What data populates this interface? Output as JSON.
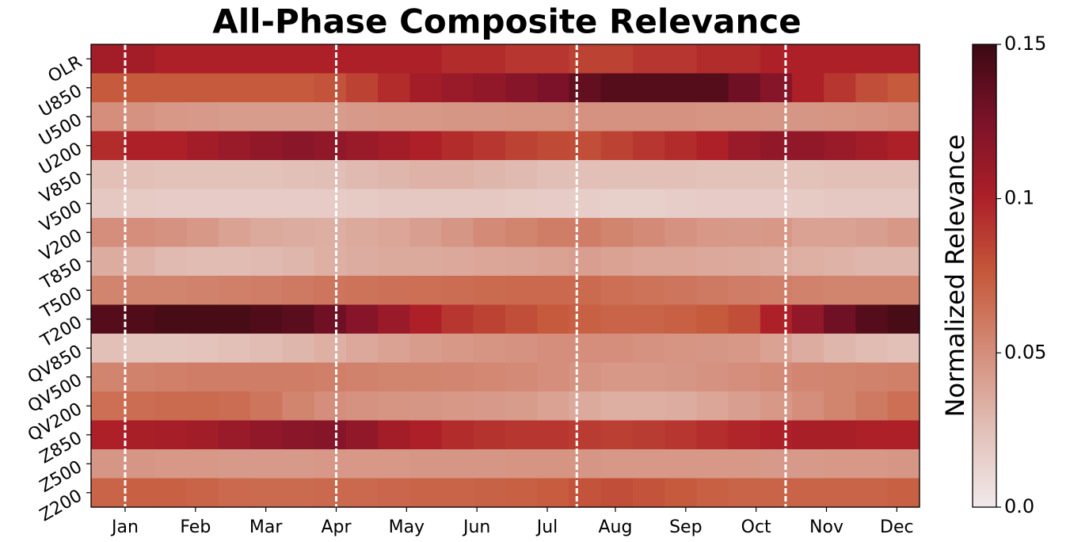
{
  "chart_data": {
    "type": "heatmap",
    "title": "All-Phase Composite Relevance",
    "colorbar_label": "Normalized Relevance",
    "rows": [
      "OLR",
      "U850",
      "U500",
      "U200",
      "V850",
      "V500",
      "V200",
      "T850",
      "T500",
      "T200",
      "QV850",
      "QV500",
      "QV200",
      "Z850",
      "Z500",
      "Z200"
    ],
    "xlim": [
      0,
      365
    ],
    "xticks": [
      {
        "value": 15,
        "label": "Jan"
      },
      {
        "value": 46,
        "label": "Feb"
      },
      {
        "value": 77,
        "label": "Mar"
      },
      {
        "value": 108,
        "label": "Apr"
      },
      {
        "value": 139,
        "label": "May"
      },
      {
        "value": 170,
        "label": "Jun"
      },
      {
        "value": 201,
        "label": "Jul"
      },
      {
        "value": 231,
        "label": "Aug"
      },
      {
        "value": 262,
        "label": "Sep"
      },
      {
        "value": 293,
        "label": "Oct"
      },
      {
        "value": 324,
        "label": "Nov"
      },
      {
        "value": 355,
        "label": "Dec"
      }
    ],
    "vlines": [
      15,
      108,
      214,
      306
    ],
    "vlim": [
      0,
      0.15
    ],
    "cticks": [
      {
        "value": 0,
        "label": "0.0"
      },
      0.05,
      0.1,
      0.15
    ],
    "colormap": [
      "#f1e9ea",
      "#e2c0b8",
      "#d48e7b",
      "#c65a3c",
      "#ad2028",
      "#7c1229",
      "#3b0a12"
    ],
    "values": [
      [
        0.105,
        0.105,
        0.1,
        0.1,
        0.1,
        0.1,
        0.1,
        0.1,
        0.1,
        0.1,
        0.1,
        0.095,
        0.095,
        0.09,
        0.09,
        0.085,
        0.085,
        0.09,
        0.09,
        0.095,
        0.095,
        0.1,
        0.1,
        0.1,
        0.1,
        0.1
      ],
      [
        0.075,
        0.075,
        0.075,
        0.075,
        0.075,
        0.075,
        0.075,
        0.078,
        0.085,
        0.095,
        0.105,
        0.11,
        0.115,
        0.12,
        0.125,
        0.135,
        0.14,
        0.14,
        0.14,
        0.14,
        0.13,
        0.12,
        0.1,
        0.09,
        0.08,
        0.075
      ],
      [
        0.05,
        0.048,
        0.045,
        0.044,
        0.043,
        0.043,
        0.043,
        0.043,
        0.044,
        0.045,
        0.045,
        0.046,
        0.046,
        0.047,
        0.047,
        0.048,
        0.048,
        0.048,
        0.048,
        0.047,
        0.047,
        0.046,
        0.046,
        0.047,
        0.048,
        0.05
      ],
      [
        0.095,
        0.1,
        0.1,
        0.105,
        0.11,
        0.115,
        0.118,
        0.115,
        0.11,
        0.105,
        0.1,
        0.095,
        0.09,
        0.085,
        0.082,
        0.08,
        0.085,
        0.09,
        0.095,
        0.1,
        0.11,
        0.115,
        0.115,
        0.11,
        0.105,
        0.1
      ],
      [
        0.025,
        0.025,
        0.024,
        0.024,
        0.024,
        0.024,
        0.025,
        0.026,
        0.028,
        0.03,
        0.032,
        0.032,
        0.03,
        0.028,
        0.026,
        0.025,
        0.025,
        0.025,
        0.025,
        0.024,
        0.024,
        0.024,
        0.024,
        0.025,
        0.025,
        0.025
      ],
      [
        0.02,
        0.019,
        0.018,
        0.018,
        0.018,
        0.018,
        0.018,
        0.018,
        0.019,
        0.02,
        0.02,
        0.02,
        0.02,
        0.019,
        0.018,
        0.017,
        0.016,
        0.016,
        0.017,
        0.018,
        0.018,
        0.018,
        0.019,
        0.02,
        0.02,
        0.02
      ],
      [
        0.05,
        0.05,
        0.048,
        0.045,
        0.04,
        0.036,
        0.035,
        0.034,
        0.036,
        0.038,
        0.042,
        0.046,
        0.052,
        0.055,
        0.058,
        0.058,
        0.055,
        0.052,
        0.048,
        0.045,
        0.044,
        0.045,
        0.04,
        0.04,
        0.042,
        0.045
      ],
      [
        0.035,
        0.032,
        0.028,
        0.027,
        0.027,
        0.028,
        0.03,
        0.033,
        0.035,
        0.036,
        0.036,
        0.037,
        0.038,
        0.039,
        0.04,
        0.042,
        0.04,
        0.038,
        0.038,
        0.037,
        0.036,
        0.035,
        0.033,
        0.032,
        0.03,
        0.03
      ],
      [
        0.055,
        0.055,
        0.055,
        0.056,
        0.057,
        0.058,
        0.06,
        0.062,
        0.063,
        0.064,
        0.065,
        0.066,
        0.067,
        0.068,
        0.068,
        0.067,
        0.065,
        0.063,
        0.062,
        0.06,
        0.058,
        0.057,
        0.056,
        0.055,
        0.055,
        0.055
      ],
      [
        0.14,
        0.142,
        0.145,
        0.145,
        0.145,
        0.142,
        0.138,
        0.13,
        0.12,
        0.11,
        0.1,
        0.09,
        0.085,
        0.08,
        0.075,
        0.072,
        0.07,
        0.07,
        0.072,
        0.075,
        0.08,
        0.1,
        0.115,
        0.13,
        0.14,
        0.145
      ],
      [
        0.025,
        0.022,
        0.022,
        0.023,
        0.025,
        0.027,
        0.03,
        0.033,
        0.037,
        0.04,
        0.043,
        0.045,
        0.047,
        0.048,
        0.05,
        0.05,
        0.05,
        0.048,
        0.047,
        0.046,
        0.045,
        0.04,
        0.035,
        0.03,
        0.027,
        0.025
      ],
      [
        0.055,
        0.056,
        0.057,
        0.058,
        0.058,
        0.058,
        0.058,
        0.057,
        0.056,
        0.055,
        0.055,
        0.054,
        0.053,
        0.052,
        0.05,
        0.047,
        0.045,
        0.045,
        0.046,
        0.048,
        0.05,
        0.052,
        0.054,
        0.055,
        0.056,
        0.057
      ],
      [
        0.065,
        0.066,
        0.067,
        0.067,
        0.066,
        0.062,
        0.055,
        0.05,
        0.048,
        0.047,
        0.046,
        0.045,
        0.044,
        0.043,
        0.04,
        0.036,
        0.034,
        0.034,
        0.035,
        0.038,
        0.042,
        0.045,
        0.05,
        0.055,
        0.06,
        0.065
      ],
      [
        0.1,
        0.102,
        0.104,
        0.106,
        0.11,
        0.115,
        0.118,
        0.12,
        0.115,
        0.105,
        0.1,
        0.095,
        0.092,
        0.09,
        0.09,
        0.088,
        0.086,
        0.088,
        0.09,
        0.094,
        0.098,
        0.1,
        0.102,
        0.102,
        0.1,
        0.1
      ],
      [
        0.046,
        0.046,
        0.045,
        0.045,
        0.044,
        0.044,
        0.044,
        0.045,
        0.045,
        0.045,
        0.046,
        0.046,
        0.046,
        0.047,
        0.047,
        0.046,
        0.045,
        0.045,
        0.045,
        0.045,
        0.045,
        0.044,
        0.044,
        0.045,
        0.045,
        0.046
      ],
      [
        0.07,
        0.072,
        0.072,
        0.07,
        0.068,
        0.067,
        0.067,
        0.068,
        0.068,
        0.069,
        0.07,
        0.07,
        0.071,
        0.072,
        0.074,
        0.078,
        0.08,
        0.078,
        0.075,
        0.072,
        0.07,
        0.07,
        0.07,
        0.07,
        0.07,
        0.072
      ]
    ]
  }
}
